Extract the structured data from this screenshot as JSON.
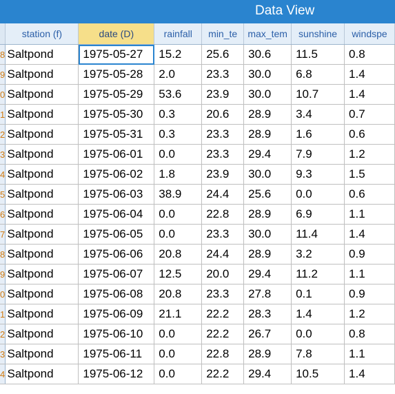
{
  "window": {
    "title": "Data View"
  },
  "columns": [
    "station (f)",
    "date (D)",
    "rainfall",
    "min_te",
    "max_tem",
    "sunshine",
    "windspe"
  ],
  "row_numbers": [
    "8",
    "9",
    "0",
    "1",
    "2",
    "3",
    "4",
    "5",
    "6",
    "7",
    "8",
    "9",
    "0",
    "1",
    "2",
    "3",
    "4"
  ],
  "rows": [
    [
      "Saltpond",
      "1975-05-27",
      "15.2",
      "25.6",
      "30.6",
      "11.5",
      "0.8"
    ],
    [
      "Saltpond",
      "1975-05-28",
      "2.0",
      "23.3",
      "30.0",
      "6.8",
      "1.4"
    ],
    [
      "Saltpond",
      "1975-05-29",
      "53.6",
      "23.9",
      "30.0",
      "10.7",
      "1.4"
    ],
    [
      "Saltpond",
      "1975-05-30",
      "0.3",
      "20.6",
      "28.9",
      "3.4",
      "0.7"
    ],
    [
      "Saltpond",
      "1975-05-31",
      "0.3",
      "23.3",
      "28.9",
      "1.6",
      "0.6"
    ],
    [
      "Saltpond",
      "1975-06-01",
      "0.0",
      "23.3",
      "29.4",
      "7.9",
      "1.2"
    ],
    [
      "Saltpond",
      "1975-06-02",
      "1.8",
      "23.9",
      "30.0",
      "9.3",
      "1.5"
    ],
    [
      "Saltpond",
      "1975-06-03",
      "38.9",
      "24.4",
      "25.6",
      "0.0",
      "0.6"
    ],
    [
      "Saltpond",
      "1975-06-04",
      "0.0",
      "22.8",
      "28.9",
      "6.9",
      "1.1"
    ],
    [
      "Saltpond",
      "1975-06-05",
      "0.0",
      "23.3",
      "30.0",
      "11.4",
      "1.4"
    ],
    [
      "Saltpond",
      "1975-06-06",
      "20.8",
      "24.4",
      "28.9",
      "3.2",
      "0.9"
    ],
    [
      "Saltpond",
      "1975-06-07",
      "12.5",
      "20.0",
      "29.4",
      "11.2",
      "1.1"
    ],
    [
      "Saltpond",
      "1975-06-08",
      "20.8",
      "23.3",
      "27.8",
      "0.1",
      "0.9"
    ],
    [
      "Saltpond",
      "1975-06-09",
      "21.1",
      "22.2",
      "28.3",
      "1.4",
      "1.2"
    ],
    [
      "Saltpond",
      "1975-06-10",
      "0.0",
      "22.2",
      "26.7",
      "0.0",
      "0.8"
    ],
    [
      "Saltpond",
      "1975-06-11",
      "0.0",
      "22.8",
      "28.9",
      "7.8",
      "1.1"
    ],
    [
      "Saltpond",
      "1975-06-12",
      "0.0",
      "22.2",
      "29.4",
      "10.5",
      "1.4"
    ]
  ],
  "colors": {
    "accent": "#2a84cf",
    "highlight_header": "#f6df8a",
    "row_number": "#d07a10"
  }
}
